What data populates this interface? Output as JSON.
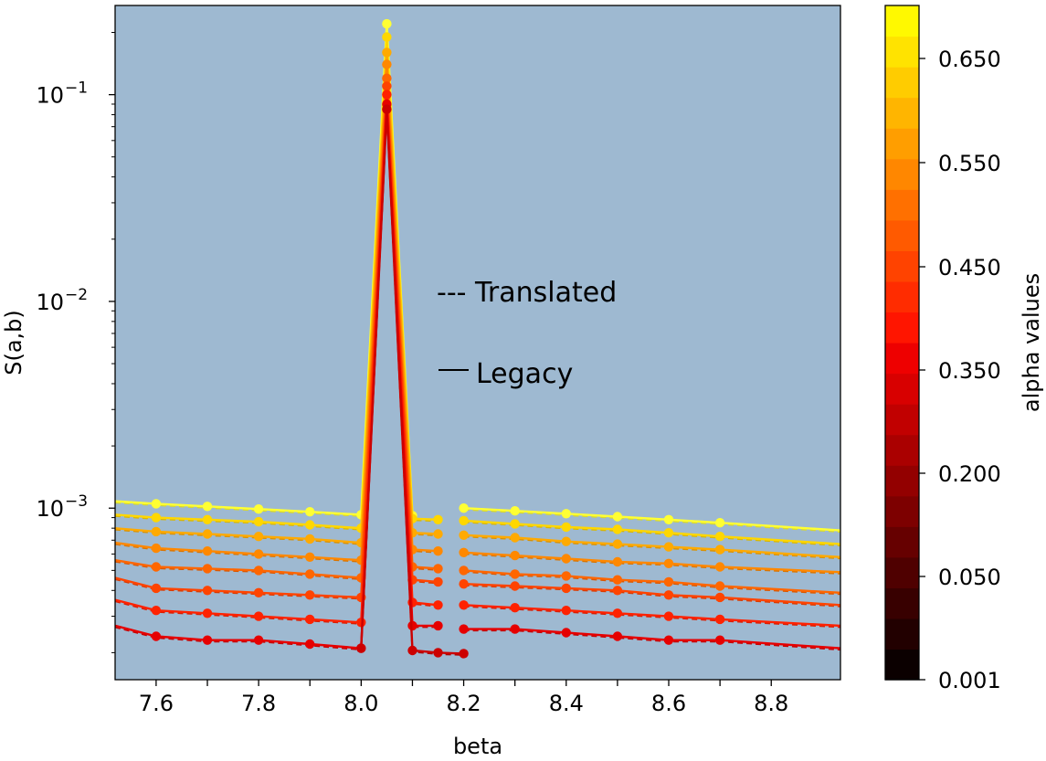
{
  "chart_data": {
    "type": "line",
    "xlabel": "beta",
    "ylabel": "S(a,b)",
    "y_scale": "log",
    "xlim": [
      7.52,
      8.935
    ],
    "ylim": [
      0.000148,
      0.27
    ],
    "x_ticks": [
      7.6,
      7.7,
      7.8,
      7.9,
      8.0,
      8.1,
      8.2,
      8.3,
      8.4,
      8.5,
      8.6,
      8.7,
      8.8
    ],
    "x_tick_labels": [
      "7.6",
      "7.8",
      "8.0",
      "8.2",
      "8.4",
      "8.6",
      "8.8"
    ],
    "y_tick_labels": [
      {
        "value": 0.001,
        "base": "10",
        "exp": "−3"
      },
      {
        "value": 0.01,
        "base": "10",
        "exp": "−2"
      },
      {
        "value": 0.1,
        "base": "10",
        "exp": "−1"
      }
    ],
    "axes_background": "#9eb9d1",
    "legend": [
      {
        "label": "--- Translated",
        "style": "dashed"
      },
      {
        "label": "Legacy",
        "style": "solid"
      }
    ],
    "colorbar": {
      "label": "alpha values",
      "min_label": "0.001",
      "tick_labels": [
        "0.001",
        "0.050",
        "0.200",
        "0.350",
        "0.450",
        "0.550",
        "0.650"
      ],
      "colors": [
        "#0b0000",
        "#220000",
        "#380000",
        "#4f0000",
        "#660000",
        "#7d0000",
        "#930000",
        "#aa0000",
        "#c10000",
        "#d80000",
        "#ee0000",
        "#ff1500",
        "#ff2c00",
        "#ff4300",
        "#ff5a00",
        "#ff7000",
        "#ff8700",
        "#ff9e00",
        "#ffb500",
        "#ffcc00",
        "#ffe300",
        "#fff900"
      ]
    },
    "series": [
      {
        "color": "#ffff33",
        "left": [
          [
            7.52,
            0.00108
          ],
          [
            7.6,
            0.00105
          ],
          [
            7.7,
            0.00102
          ],
          [
            7.8,
            0.00099
          ],
          [
            7.9,
            0.00096
          ],
          [
            8.0,
            0.00093
          ],
          [
            8.05,
            0.22
          ],
          [
            8.1,
            0.00092
          ]
        ],
        "right": [
          [
            8.2,
            0.001
          ],
          [
            8.3,
            0.00097
          ],
          [
            8.4,
            0.00094
          ],
          [
            8.5,
            0.00091
          ],
          [
            8.6,
            0.00088
          ],
          [
            8.7,
            0.00085
          ],
          [
            8.935,
            0.00078
          ]
        ]
      },
      {
        "color": "#ffd700",
        "left": [
          [
            7.52,
            0.00093
          ],
          [
            7.6,
            0.0009
          ],
          [
            7.7,
            0.00088
          ],
          [
            7.8,
            0.00086
          ],
          [
            7.9,
            0.00083
          ],
          [
            8.0,
            0.0008
          ],
          [
            8.05,
            0.19
          ],
          [
            8.1,
            0.00089
          ],
          [
            8.15,
            0.00088
          ]
        ],
        "right": [
          [
            8.2,
            0.00087
          ],
          [
            8.3,
            0.00084
          ],
          [
            8.4,
            0.00081
          ],
          [
            8.5,
            0.00079
          ],
          [
            8.6,
            0.00076
          ],
          [
            8.7,
            0.00073
          ],
          [
            8.935,
            0.00067
          ]
        ]
      },
      {
        "color": "#ffaa00",
        "left": [
          [
            7.52,
            0.0008
          ],
          [
            7.6,
            0.00077
          ],
          [
            7.7,
            0.00075
          ],
          [
            7.8,
            0.00073
          ],
          [
            7.9,
            0.00071
          ],
          [
            8.0,
            0.00068
          ],
          [
            8.05,
            0.16
          ],
          [
            8.1,
            0.00076
          ],
          [
            8.15,
            0.00075
          ]
        ],
        "right": [
          [
            8.2,
            0.00074
          ],
          [
            8.3,
            0.00072
          ],
          [
            8.4,
            0.00069
          ],
          [
            8.5,
            0.00067
          ],
          [
            8.6,
            0.00065
          ],
          [
            8.7,
            0.00063
          ],
          [
            8.935,
            0.00058
          ]
        ]
      },
      {
        "color": "#ff8800",
        "left": [
          [
            7.52,
            0.00068
          ],
          [
            7.6,
            0.00064
          ],
          [
            7.7,
            0.00062
          ],
          [
            7.8,
            0.0006
          ],
          [
            7.9,
            0.00058
          ],
          [
            8.0,
            0.00056
          ],
          [
            8.05,
            0.14
          ],
          [
            8.1,
            0.00063
          ],
          [
            8.15,
            0.00062
          ]
        ],
        "right": [
          [
            8.2,
            0.00061
          ],
          [
            8.3,
            0.00059
          ],
          [
            8.4,
            0.00057
          ],
          [
            8.5,
            0.00055
          ],
          [
            8.6,
            0.00054
          ],
          [
            8.7,
            0.00052
          ],
          [
            8.935,
            0.00049
          ]
        ]
      },
      {
        "color": "#ff6600",
        "left": [
          [
            7.52,
            0.00056
          ],
          [
            7.6,
            0.00052
          ],
          [
            7.7,
            0.00051
          ],
          [
            7.8,
            0.0005
          ],
          [
            7.9,
            0.00048
          ],
          [
            8.0,
            0.00046
          ],
          [
            8.05,
            0.12
          ],
          [
            8.1,
            0.00052
          ],
          [
            8.15,
            0.00051
          ]
        ],
        "right": [
          [
            8.2,
            0.0005
          ],
          [
            8.3,
            0.00048
          ],
          [
            8.4,
            0.00047
          ],
          [
            8.5,
            0.00045
          ],
          [
            8.6,
            0.00044
          ],
          [
            8.7,
            0.00042
          ],
          [
            8.935,
            0.00039
          ]
        ]
      },
      {
        "color": "#ff4400",
        "left": [
          [
            7.52,
            0.00046
          ],
          [
            7.6,
            0.00041
          ],
          [
            7.7,
            0.0004
          ],
          [
            7.8,
            0.00039
          ],
          [
            7.9,
            0.00038
          ],
          [
            8.0,
            0.00037
          ],
          [
            8.05,
            0.11
          ],
          [
            8.1,
            0.00045
          ],
          [
            8.15,
            0.00044
          ]
        ],
        "right": [
          [
            8.2,
            0.00043
          ],
          [
            8.3,
            0.00042
          ],
          [
            8.4,
            0.00041
          ],
          [
            8.5,
            0.0004
          ],
          [
            8.6,
            0.00038
          ],
          [
            8.7,
            0.00037
          ],
          [
            8.935,
            0.00034
          ]
        ]
      },
      {
        "color": "#ff2200",
        "left": [
          [
            7.52,
            0.00036
          ],
          [
            7.6,
            0.00032
          ],
          [
            7.7,
            0.00031
          ],
          [
            7.8,
            0.0003
          ],
          [
            7.9,
            0.00029
          ],
          [
            8.0,
            0.00028
          ],
          [
            8.05,
            0.1
          ],
          [
            8.1,
            0.00035
          ],
          [
            8.15,
            0.00034
          ]
        ],
        "right": [
          [
            8.2,
            0.00034
          ],
          [
            8.3,
            0.00033
          ],
          [
            8.4,
            0.00032
          ],
          [
            8.5,
            0.00031
          ],
          [
            8.6,
            0.0003
          ],
          [
            8.7,
            0.00029
          ],
          [
            8.935,
            0.00027
          ]
        ]
      },
      {
        "color": "#e60000",
        "left": [
          [
            7.52,
            0.00027
          ],
          [
            7.6,
            0.00024
          ],
          [
            7.7,
            0.00023
          ],
          [
            7.8,
            0.00023
          ],
          [
            7.9,
            0.00022
          ],
          [
            8.0,
            0.00021
          ],
          [
            8.05,
            0.09
          ],
          [
            8.1,
            0.00027
          ],
          [
            8.15,
            0.00027
          ]
        ],
        "right": [
          [
            8.2,
            0.00026
          ],
          [
            8.3,
            0.00026
          ],
          [
            8.4,
            0.00025
          ],
          [
            8.5,
            0.00024
          ],
          [
            8.6,
            0.00023
          ],
          [
            8.7,
            0.00023
          ],
          [
            8.935,
            0.00021
          ]
        ]
      },
      {
        "color": "#cc0000",
        "left": [
          [
            8.0,
            0.00021
          ],
          [
            8.05,
            0.085
          ],
          [
            8.1,
            0.000205
          ],
          [
            8.15,
            0.0002
          ],
          [
            8.2,
            0.000198
          ]
        ],
        "right": []
      }
    ]
  }
}
